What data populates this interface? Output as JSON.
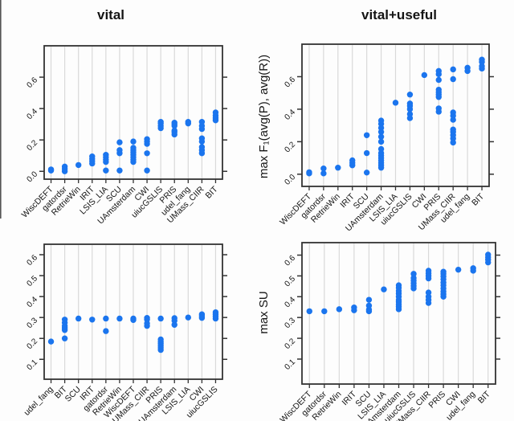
{
  "figure": {
    "titles": {
      "left_column": "vital",
      "right_column": "vital+useful"
    },
    "ylabels": {
      "top_row": "max F₁(avg(P), avg(R))",
      "bottom_row": "max SU"
    }
  },
  "colors": {
    "dot": "#1b75ee",
    "grid": "#d9d9d9",
    "axis": "#333333",
    "text": "#141414",
    "background": "#fdfdfd",
    "edge_artifact": "#555555"
  },
  "chart_data": [
    {
      "id": "f1-vital",
      "type": "scatter",
      "subtype": "strip-plot",
      "title": "vital",
      "xlabel": "",
      "ylabel": "max F₁(avg(P), avg(R))",
      "grid": "vertical category gridlines",
      "legend": "none",
      "ylim": [
        -0.05,
        0.8
      ],
      "ytick_values": [
        0.0,
        0.2,
        0.4,
        0.6
      ],
      "ytick_labels": [
        "0.0",
        "0.2",
        "0.4",
        "0.6"
      ],
      "categories": [
        "WiscDEFT",
        "gatordsr",
        "RetrieWin",
        "IRIT",
        "LSIS_LIA",
        "SCU",
        "UAmsterdam",
        "CWI",
        "uiucGSLIS",
        "PRIS",
        "udel_fang",
        "UMass_CIIR",
        "BIT"
      ],
      "values": [
        [
          0.005,
          0.012
        ],
        [
          0.0,
          0.015,
          0.03
        ],
        [
          0.04
        ],
        [
          0.05,
          0.065,
          0.08,
          0.095
        ],
        [
          0.005,
          0.06,
          0.075,
          0.09,
          0.105
        ],
        [
          0.005,
          0.115,
          0.135,
          0.185
        ],
        [
          0.06,
          0.075,
          0.09,
          0.105,
          0.12,
          0.135,
          0.15,
          0.19
        ],
        [
          0.005,
          0.115,
          0.175,
          0.19,
          0.205
        ],
        [
          0.275,
          0.29,
          0.305,
          0.315
        ],
        [
          0.235,
          0.25,
          0.26,
          0.29,
          0.3,
          0.31
        ],
        [
          0.305,
          0.315
        ],
        [
          0.115,
          0.135,
          0.155,
          0.19,
          0.21,
          0.27,
          0.29,
          0.315
        ],
        [
          0.325,
          0.34,
          0.355,
          0.375
        ]
      ]
    },
    {
      "id": "f1-vital-useful",
      "type": "scatter",
      "subtype": "strip-plot",
      "title": "vital+useful",
      "xlabel": "",
      "ylabel": "max F₁(avg(P), avg(R))",
      "grid": "vertical category gridlines",
      "legend": "none",
      "ylim": [
        -0.075,
        0.8
      ],
      "ytick_values": [
        0.0,
        0.2,
        0.4,
        0.6
      ],
      "ytick_labels": [
        "0.0",
        "0.2",
        "0.4",
        "0.6"
      ],
      "categories": [
        "WiscDEFT",
        "gatordsr",
        "RetrieWin",
        "IRIT",
        "SCU",
        "UAmsterdam",
        "LSIS_LIA",
        "uiucGSLIS",
        "CWI",
        "PRIS",
        "UMass_CIIR",
        "udel_fang",
        "BIT"
      ],
      "values": [
        [
          0.005,
          0.012
        ],
        [
          0.005,
          0.035
        ],
        [
          0.04
        ],
        [
          0.055,
          0.07,
          0.085
        ],
        [
          0.01,
          0.13,
          0.24
        ],
        [
          0.04,
          0.055,
          0.07,
          0.085,
          0.1,
          0.115,
          0.13,
          0.155,
          0.2,
          0.23,
          0.26,
          0.285,
          0.31,
          0.33
        ],
        [
          0.44
        ],
        [
          0.345,
          0.37,
          0.4,
          0.42,
          0.435,
          0.49
        ],
        [
          0.61
        ],
        [
          0.385,
          0.405,
          0.475,
          0.49,
          0.505,
          0.52,
          0.58,
          0.615,
          0.635
        ],
        [
          0.195,
          0.22,
          0.24,
          0.26,
          0.275,
          0.335,
          0.36,
          0.38,
          0.585,
          0.645
        ],
        [
          0.635,
          0.655
        ],
        [
          0.65,
          0.665,
          0.69,
          0.705
        ]
      ]
    },
    {
      "id": "su-vital",
      "type": "scatter",
      "subtype": "strip-plot",
      "title": "",
      "xlabel": "",
      "ylabel": "max SU",
      "grid": "vertical category gridlines",
      "legend": "none",
      "ylim": [
        0.005,
        0.65
      ],
      "ytick_values": [
        0.1,
        0.2,
        0.3,
        0.4,
        0.5,
        0.6
      ],
      "ytick_labels": [
        "0.1",
        "0.2",
        "0.3",
        "0.4",
        "0.5",
        "0.6"
      ],
      "categories": [
        "udel_fang",
        "BIT",
        "SCU",
        "IRIT",
        "gatordsr",
        "RetrieWin",
        "WiscDEFT",
        "UMass_CIIR",
        "PRIS",
        "UAmsterdam",
        "LSIS_LIA",
        "CWI",
        "uiucGSLIS"
      ],
      "values": [
        [
          0.185
        ],
        [
          0.2,
          0.24,
          0.25,
          0.26,
          0.275,
          0.29
        ],
        [
          0.295
        ],
        [
          0.29
        ],
        [
          0.235,
          0.295
        ],
        [
          0.295
        ],
        [
          0.288,
          0.295
        ],
        [
          0.26,
          0.272,
          0.29,
          0.298
        ],
        [
          0.145,
          0.155,
          0.165,
          0.175,
          0.185,
          0.195,
          0.295
        ],
        [
          0.265,
          0.285,
          0.297
        ],
        [
          0.3
        ],
        [
          0.298,
          0.308,
          0.315
        ],
        [
          0.295,
          0.305,
          0.315,
          0.325
        ]
      ]
    },
    {
      "id": "su-vital-useful",
      "type": "scatter",
      "subtype": "strip-plot",
      "title": "",
      "xlabel": "",
      "ylabel": "max SU",
      "grid": "vertical category gridlines",
      "legend": "none",
      "ylim": [
        -0.02,
        0.66
      ],
      "ytick_values": [
        0.1,
        0.2,
        0.3,
        0.4,
        0.5,
        0.6
      ],
      "ytick_labels": [
        "0.1",
        "0.2",
        "0.3",
        "0.4",
        "0.5",
        "0.6"
      ],
      "categories": [
        "WiscDEFT",
        "gatordsr",
        "RetrieWin",
        "IRIT",
        "SCU",
        "LSIS_LIA",
        "UAmsterdam",
        "uiucGSLIS",
        "UMass_CIIR",
        "PRIS",
        "CWI",
        "udel_fang",
        "BIT"
      ],
      "values": [
        [
          0.33
        ],
        [
          0.33
        ],
        [
          0.34
        ],
        [
          0.335,
          0.348
        ],
        [
          0.33,
          0.338,
          0.357,
          0.385
        ],
        [
          0.435
        ],
        [
          0.34,
          0.352,
          0.363,
          0.375,
          0.385,
          0.4,
          0.415,
          0.428,
          0.443,
          0.455
        ],
        [
          0.44,
          0.452,
          0.465,
          0.478,
          0.49,
          0.51
        ],
        [
          0.37,
          0.385,
          0.4,
          0.42,
          0.488,
          0.5,
          0.512,
          0.525
        ],
        [
          0.4,
          0.412,
          0.425,
          0.44,
          0.455,
          0.468,
          0.483,
          0.497,
          0.51,
          0.52
        ],
        [
          0.53
        ],
        [
          0.525,
          0.537
        ],
        [
          0.565,
          0.578,
          0.59,
          0.602
        ]
      ]
    }
  ]
}
